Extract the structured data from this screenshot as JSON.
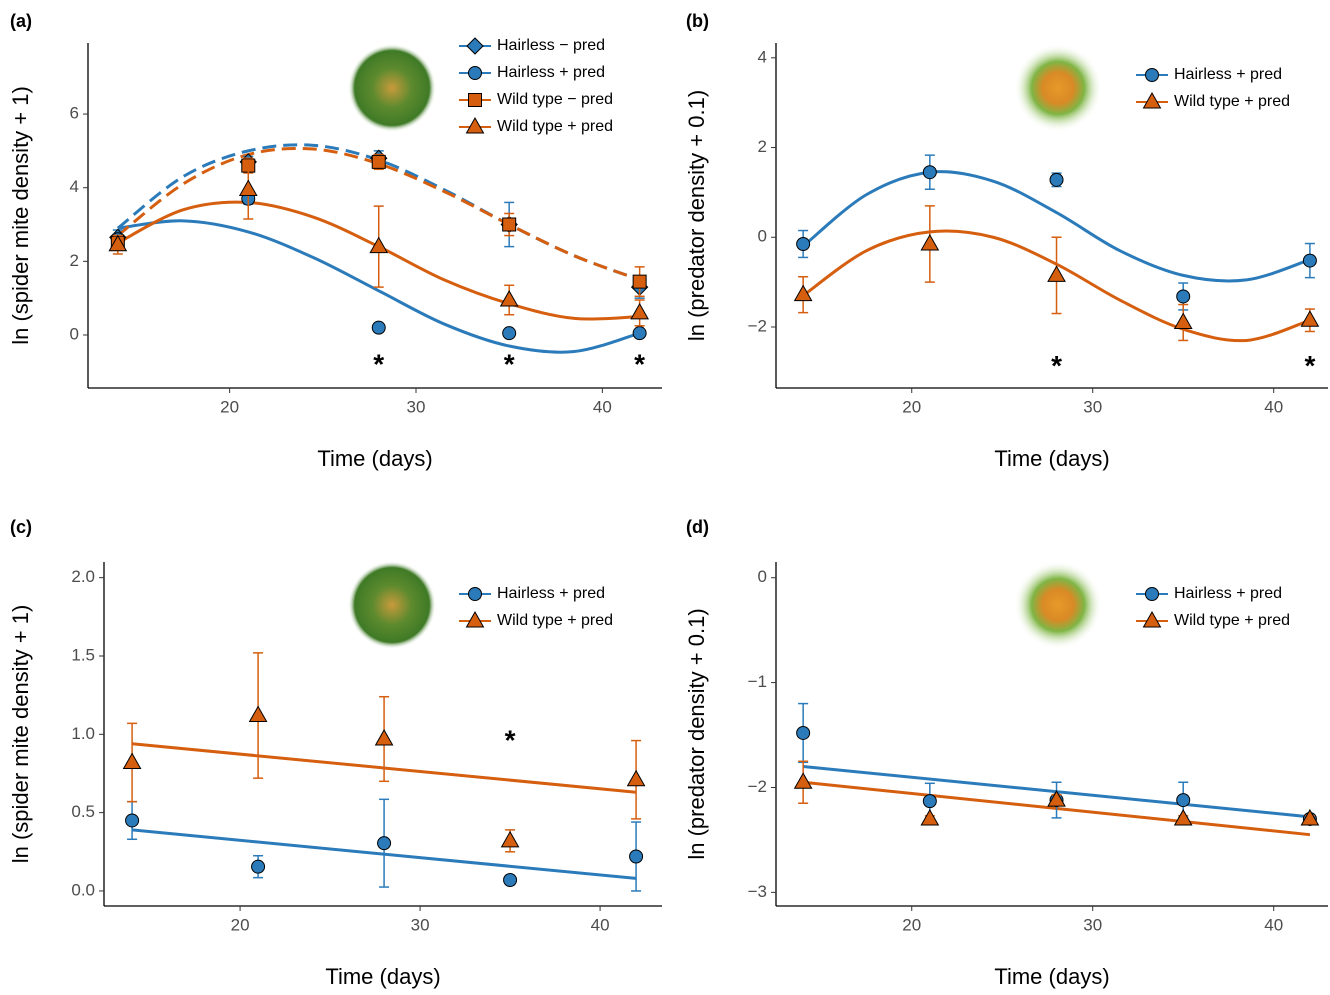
{
  "chart_data": [
    {
      "type": "scatter",
      "label": "(a)",
      "xlabel": "Time (days)",
      "ylabel": "ln (spider mite density + 1)",
      "xlim": [
        12.4,
        43.2
      ],
      "xticks": [
        20,
        30,
        40
      ],
      "ylim": [
        -1.44,
        7.93
      ],
      "yticks": [
        0,
        2,
        4,
        6
      ],
      "x": [
        14,
        21,
        28,
        35,
        42
      ],
      "fit_x": [
        14,
        17.5,
        21,
        24.5,
        28,
        31.5,
        35,
        38.5,
        42
      ],
      "series": [
        {
          "name": "Hairless − pred",
          "color": "#2b7bba",
          "marker": "diamond",
          "dash": true,
          "values": [
            2.65,
            4.7,
            4.8,
            3.0,
            1.3
          ],
          "error": [
            0.2,
            0.15,
            0.2,
            0.6,
            0.3
          ],
          "fit_values": [
            2.9,
            4.3,
            5.0,
            5.15,
            4.75,
            3.95,
            3.0,
            2.15,
            1.5
          ]
        },
        {
          "name": "Hairless + pred",
          "color": "#2b7bba",
          "marker": "circle",
          "dash": false,
          "values": [
            2.6,
            3.7,
            0.2,
            0.05,
            0.05
          ],
          "error": [
            0.15,
            0.15,
            0.05,
            0.05,
            0.05
          ],
          "fit_values": [
            2.9,
            3.1,
            2.8,
            2.1,
            1.2,
            0.3,
            -0.3,
            -0.45,
            0.05
          ]
        },
        {
          "name": "Wild type − pred",
          "color": "#d55e0f",
          "marker": "square",
          "dash": true,
          "values": [
            2.5,
            4.6,
            4.7,
            3.0,
            1.45
          ],
          "error": [
            0.2,
            0.2,
            0.2,
            0.3,
            0.4
          ],
          "fit_values": [
            2.7,
            4.1,
            4.9,
            5.05,
            4.65,
            3.9,
            3.0,
            2.15,
            1.5
          ]
        },
        {
          "name": "Wild type + pred",
          "color": "#d55e0f",
          "marker": "triangle",
          "dash": false,
          "values": [
            2.45,
            3.95,
            2.4,
            0.95,
            0.6
          ],
          "error": [
            0.25,
            0.8,
            1.1,
            0.4,
            0.35
          ],
          "fit_values": [
            2.5,
            3.4,
            3.6,
            3.2,
            2.4,
            1.5,
            0.85,
            0.45,
            0.5
          ]
        }
      ],
      "annotations": [
        {
          "x": 28,
          "y": -0.85,
          "text": "*"
        },
        {
          "x": 35,
          "y": -0.85,
          "text": "*"
        },
        {
          "x": 42,
          "y": -0.85,
          "text": "*"
        }
      ]
    },
    {
      "type": "scatter",
      "label": "(b)",
      "xlabel": "Time (days)",
      "ylabel": "ln (predator density + 0.1)",
      "xlim": [
        12.5,
        43.0
      ],
      "xticks": [
        20,
        30,
        40
      ],
      "ylim": [
        -3.36,
        4.33
      ],
      "yticks": [
        {
          "value": -2,
          "label": "−2"
        },
        0,
        2,
        4
      ],
      "x": [
        14,
        21,
        28,
        35,
        42
      ],
      "fit_x": [
        14,
        17.5,
        21,
        24.5,
        28,
        31.5,
        35,
        38.5,
        42
      ],
      "series": [
        {
          "name": "Hairless + pred",
          "color": "#2b7bba",
          "marker": "circle",
          "dash": false,
          "values": [
            -0.15,
            1.45,
            1.28,
            -1.32,
            -0.52
          ],
          "error": [
            0.3,
            0.38,
            0.15,
            0.3,
            0.38
          ],
          "fit_values": [
            -0.2,
            0.95,
            1.45,
            1.25,
            0.55,
            -0.3,
            -0.85,
            -0.95,
            -0.5
          ]
        },
        {
          "name": "Wild type + pred",
          "color": "#d55e0f",
          "marker": "triangle",
          "dash": false,
          "values": [
            -1.28,
            -0.15,
            -0.85,
            -1.9,
            -1.85
          ],
          "error": [
            0.4,
            0.85,
            0.85,
            0.4,
            0.25
          ],
          "fit_values": [
            -1.3,
            -0.3,
            0.12,
            0.0,
            -0.6,
            -1.4,
            -2.05,
            -2.3,
            -1.85
          ]
        }
      ],
      "annotations": [
        {
          "x": 28,
          "y": -2.9,
          "text": "*"
        },
        {
          "x": 42,
          "y": -2.9,
          "text": "*"
        }
      ]
    },
    {
      "type": "scatter",
      "label": "(c)",
      "xlabel": "Time (days)",
      "ylabel": "ln (spider mite density + 1)",
      "xlim": [
        12.44,
        43.44
      ],
      "xticks": [
        20,
        30,
        40
      ],
      "ylim": [
        -0.096,
        2.1
      ],
      "yticks": [
        {
          "value": 0,
          "label": "0.0"
        },
        0.5,
        {
          "value": 1,
          "label": "1.0"
        },
        1.5,
        {
          "value": 2,
          "label": "2.0"
        }
      ],
      "x": [
        14,
        21,
        28,
        35,
        42
      ],
      "fit_x": [
        14,
        42
      ],
      "series": [
        {
          "name": "Hairless + pred",
          "color": "#2b7bba",
          "marker": "circle",
          "dash": false,
          "values": [
            0.45,
            0.155,
            0.305,
            0.07,
            0.22
          ],
          "error": [
            0.12,
            0.07,
            0.28,
            0.03,
            0.22
          ],
          "fit_values": [
            0.39,
            0.08
          ]
        },
        {
          "name": "Wild type + pred",
          "color": "#d55e0f",
          "marker": "triangle",
          "dash": false,
          "values": [
            0.82,
            1.12,
            0.97,
            0.32,
            0.71
          ],
          "error": [
            0.25,
            0.4,
            0.27,
            0.07,
            0.25
          ],
          "fit_values": [
            0.94,
            0.63
          ]
        }
      ],
      "annotations": [
        {
          "x": 35,
          "y": 0.95,
          "text": "*"
        }
      ]
    },
    {
      "type": "scatter",
      "label": "(d)",
      "xlabel": "Time (days)",
      "ylabel": "ln (predator density + 0.1)",
      "xlim": [
        12.5,
        43.0
      ],
      "xticks": [
        20,
        30,
        40
      ],
      "ylim": [
        -3.13,
        0.15
      ],
      "yticks": [
        {
          "value": -3,
          "label": "−3"
        },
        {
          "value": -2,
          "label": "−2"
        },
        {
          "value": -1,
          "label": "−1"
        },
        0
      ],
      "x": [
        14,
        21,
        28,
        35,
        42
      ],
      "fit_x": [
        14,
        42
      ],
      "series": [
        {
          "name": "Hairless + pred",
          "color": "#2b7bba",
          "marker": "circle",
          "dash": false,
          "values": [
            -1.48,
            -2.13,
            -2.12,
            -2.12,
            -2.3
          ],
          "error": [
            0.28,
            0.17,
            0.17,
            0.17,
            0.03
          ],
          "fit_values": [
            -1.8,
            -2.28
          ]
        },
        {
          "name": "Wild type + pred",
          "color": "#d55e0f",
          "marker": "triangle",
          "dash": false,
          "values": [
            -1.95,
            -2.3,
            -2.12,
            -2.3,
            -2.3
          ],
          "error": [
            0.2,
            0.03,
            0.05,
            0.03,
            0.03
          ],
          "fit_values": [
            -1.95,
            -2.45
          ]
        }
      ],
      "annotations": []
    }
  ]
}
